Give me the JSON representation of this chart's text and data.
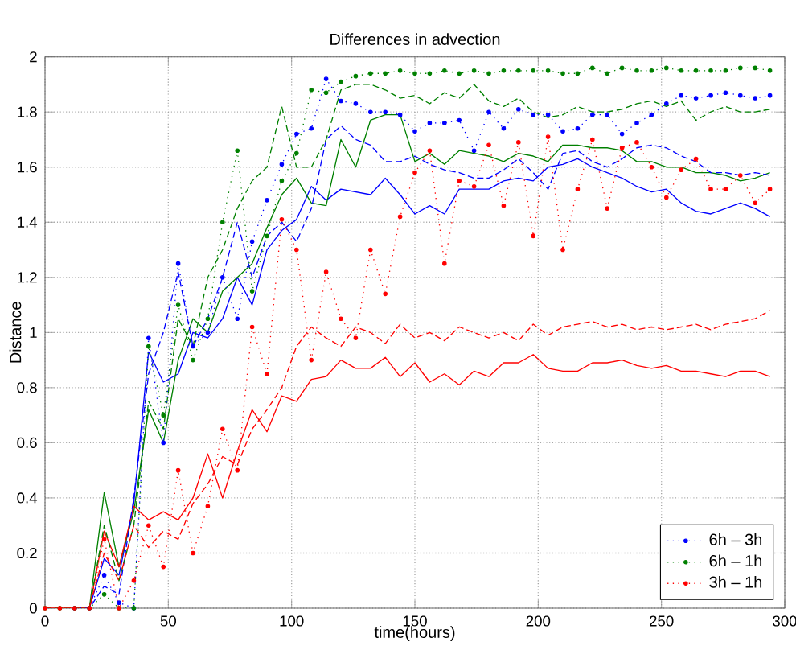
{
  "chart_data": {
    "type": "line",
    "title": "Differences in advection",
    "xlabel": "time(hours)",
    "ylabel": "Distance",
    "x": [
      0,
      6,
      12,
      18,
      24,
      30,
      36,
      42,
      48,
      54,
      60,
      66,
      72,
      78,
      84,
      90,
      96,
      102,
      108,
      114,
      120,
      126,
      132,
      138,
      144,
      150,
      156,
      162,
      168,
      174,
      180,
      186,
      192,
      198,
      204,
      210,
      216,
      222,
      228,
      234,
      240,
      246,
      252,
      258,
      264,
      270,
      276,
      282,
      288,
      294
    ],
    "xlim": [
      0,
      300
    ],
    "xticks": [
      0,
      50,
      100,
      150,
      200,
      250,
      300
    ],
    "ylim": [
      0,
      2
    ],
    "yticks": [
      0,
      0.2,
      0.4,
      0.6,
      0.8,
      1,
      1.2,
      1.4,
      1.6,
      1.8,
      2
    ],
    "grid": true,
    "legend": "bottom right",
    "series": [
      {
        "color": "#0000ff",
        "line_style": "solid",
        "marker": "none",
        "values": [
          null,
          null,
          0,
          0,
          0.18,
          0.12,
          0.38,
          0.93,
          0.82,
          0.85,
          1.0,
          0.98,
          1.05,
          1.2,
          1.1,
          1.3,
          1.37,
          1.41,
          1.53,
          1.48,
          1.52,
          1.51,
          1.5,
          1.56,
          1.5,
          1.43,
          1.46,
          1.43,
          1.52,
          1.52,
          1.52,
          1.55,
          1.56,
          1.55,
          1.6,
          1.61,
          1.63,
          1.6,
          1.58,
          1.56,
          1.53,
          1.51,
          1.52,
          1.47,
          1.44,
          1.43,
          1.45,
          1.47,
          1.45,
          1.42
        ]
      },
      {
        "color": "#008000",
        "line_style": "solid",
        "marker": "none",
        "values": [
          null,
          null,
          0,
          0,
          0.42,
          0.15,
          0.35,
          0.72,
          0.6,
          0.9,
          1.05,
          1.0,
          1.15,
          1.2,
          1.25,
          1.38,
          1.5,
          1.56,
          1.47,
          1.46,
          1.7,
          1.6,
          1.77,
          1.79,
          1.79,
          1.62,
          1.65,
          1.61,
          1.66,
          1.65,
          1.64,
          1.62,
          1.65,
          1.64,
          1.62,
          1.68,
          1.68,
          1.67,
          1.67,
          1.66,
          1.62,
          1.62,
          1.6,
          1.6,
          1.58,
          1.58,
          1.57,
          1.55,
          1.56,
          1.58
        ]
      },
      {
        "color": "#ff0000",
        "line_style": "solid",
        "marker": "none",
        "values": [
          0,
          0,
          0,
          0,
          0.28,
          0.15,
          0.37,
          0.32,
          0.35,
          0.32,
          0.4,
          0.56,
          0.4,
          0.57,
          0.72,
          0.64,
          0.77,
          0.75,
          0.83,
          0.84,
          0.9,
          0.87,
          0.87,
          0.91,
          0.84,
          0.89,
          0.82,
          0.85,
          0.81,
          0.86,
          0.84,
          0.89,
          0.89,
          0.92,
          0.87,
          0.86,
          0.86,
          0.89,
          0.89,
          0.9,
          0.88,
          0.87,
          0.88,
          0.86,
          0.86,
          0.85,
          0.84,
          0.86,
          0.86,
          0.84
        ]
      },
      {
        "color": "#0000ff",
        "line_style": "dashed",
        "marker": "none",
        "values": [
          null,
          null,
          0,
          0,
          0.08,
          0.05,
          0.4,
          0.85,
          1.0,
          1.22,
          0.95,
          1.05,
          1.2,
          1.4,
          1.2,
          1.35,
          1.4,
          1.33,
          1.45,
          1.7,
          1.75,
          1.7,
          1.68,
          1.62,
          1.62,
          1.64,
          1.61,
          1.59,
          1.58,
          1.56,
          1.56,
          1.59,
          1.63,
          1.58,
          1.52,
          1.65,
          1.66,
          1.62,
          1.6,
          1.63,
          1.67,
          1.68,
          1.67,
          1.64,
          1.62,
          1.58,
          1.58,
          1.57,
          1.58,
          1.57
        ]
      },
      {
        "color": "#008000",
        "line_style": "dashed",
        "marker": "none",
        "values": [
          0,
          0,
          0,
          0,
          0.3,
          0.1,
          0.3,
          0.75,
          0.65,
          1.05,
          0.95,
          1.2,
          1.3,
          1.45,
          1.55,
          1.6,
          1.82,
          1.6,
          1.6,
          1.7,
          1.88,
          1.9,
          1.9,
          1.88,
          1.85,
          1.86,
          1.83,
          1.87,
          1.85,
          1.9,
          1.84,
          1.82,
          1.85,
          1.8,
          1.78,
          1.79,
          1.82,
          1.8,
          1.8,
          1.81,
          1.83,
          1.84,
          1.82,
          1.84,
          1.77,
          1.8,
          1.82,
          1.8,
          1.8,
          1.81
        ]
      },
      {
        "color": "#ff0000",
        "line_style": "dashed",
        "marker": "none",
        "values": [
          0,
          0,
          0,
          0,
          0.2,
          0.1,
          0.3,
          0.22,
          0.28,
          0.25,
          0.38,
          0.45,
          0.55,
          0.52,
          0.65,
          0.72,
          0.8,
          0.95,
          1.02,
          0.98,
          0.95,
          1.02,
          1.0,
          0.96,
          1.03,
          0.98,
          1.0,
          0.97,
          1.02,
          1.0,
          0.98,
          1.0,
          0.97,
          1.03,
          0.99,
          1.02,
          1.03,
          1.04,
          1.02,
          1.03,
          1.01,
          1.02,
          1.01,
          1.02,
          1.03,
          1.01,
          1.03,
          1.04,
          1.05,
          1.08
        ]
      },
      {
        "name": "6h – 3h",
        "color": "#0000ff",
        "line_style": "dotted",
        "marker": "circle",
        "values": [
          null,
          null,
          0,
          0,
          0.12,
          0.02,
          0.0,
          0.98,
          0.6,
          1.25,
          0.95,
          1.0,
          1.2,
          1.05,
          1.33,
          1.48,
          1.61,
          1.72,
          1.74,
          1.92,
          1.84,
          1.83,
          1.8,
          1.8,
          1.79,
          1.73,
          1.76,
          1.76,
          1.77,
          1.66,
          1.8,
          1.74,
          1.81,
          1.79,
          1.79,
          1.73,
          1.74,
          1.79,
          1.79,
          1.72,
          1.76,
          1.79,
          1.83,
          1.86,
          1.85,
          1.86,
          1.87,
          1.86,
          1.85,
          1.86
        ]
      },
      {
        "name": "6h – 1h",
        "color": "#008000",
        "line_style": "dotted",
        "marker": "circle",
        "values": [
          0,
          0,
          0,
          0,
          0.05,
          0.0,
          0.0,
          0.95,
          0.7,
          1.1,
          0.9,
          1.05,
          1.4,
          1.66,
          1.15,
          1.35,
          1.55,
          1.65,
          1.88,
          1.87,
          1.91,
          1.93,
          1.94,
          1.94,
          1.95,
          1.94,
          1.94,
          1.95,
          1.94,
          1.95,
          1.94,
          1.95,
          1.95,
          1.95,
          1.95,
          1.94,
          1.94,
          1.96,
          1.94,
          1.96,
          1.95,
          1.95,
          1.96,
          1.95,
          1.95,
          1.95,
          1.95,
          1.96,
          1.96,
          1.95
        ]
      },
      {
        "name": "3h – 1h",
        "color": "#ff0000",
        "line_style": "dotted",
        "marker": "circle",
        "values": [
          0,
          0,
          0,
          0,
          0.25,
          0.0,
          0.1,
          0.3,
          0.15,
          0.5,
          0.2,
          0.37,
          0.65,
          0.5,
          1.02,
          0.85,
          1.41,
          1.3,
          0.9,
          1.22,
          1.05,
          0.98,
          1.3,
          1.14,
          1.42,
          1.58,
          1.66,
          1.25,
          1.55,
          1.53,
          1.68,
          1.46,
          1.69,
          1.35,
          1.71,
          1.3,
          1.52,
          1.7,
          1.45,
          1.67,
          1.69,
          1.6,
          1.49,
          1.59,
          1.63,
          1.52,
          1.52,
          1.57,
          1.47,
          1.52
        ]
      }
    ]
  }
}
